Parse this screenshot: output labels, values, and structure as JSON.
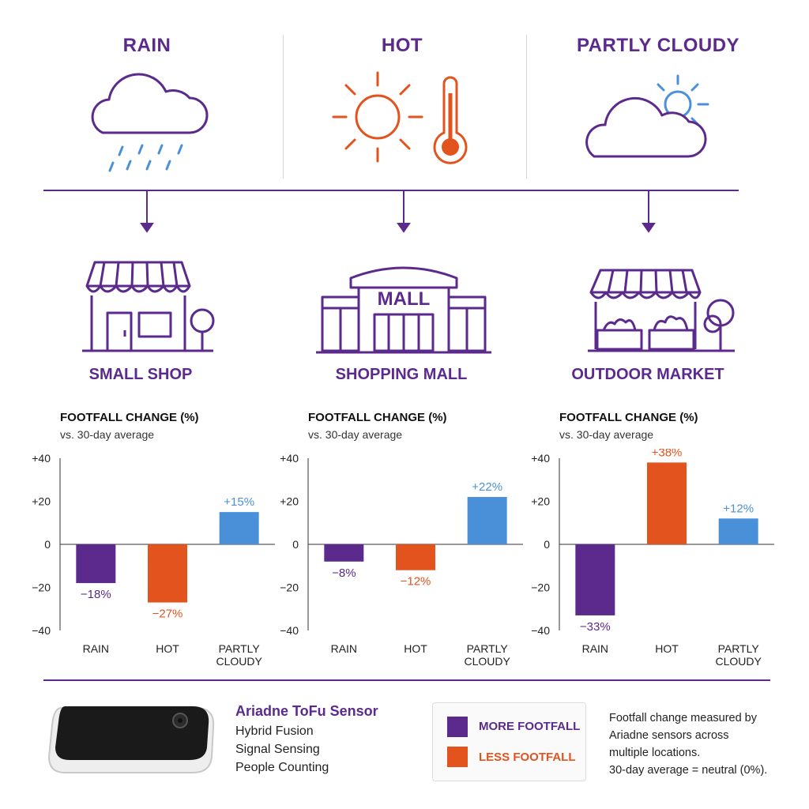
{
  "weather": [
    {
      "label": "RAIN",
      "icon": "rain-cloud-icon"
    },
    {
      "label": "HOT",
      "icon": "sun-thermometer-icon"
    },
    {
      "label": "PARTLY CLOUDY",
      "icon": "partly-cloudy-icon"
    }
  ],
  "stores": [
    {
      "label": "SMALL SHOP",
      "icon": "small-shop-icon"
    },
    {
      "label": "SHOPPING MALL",
      "icon": "shopping-mall-icon",
      "sign": "MALL"
    },
    {
      "label": "OUTDOOR MARKET",
      "icon": "outdoor-market-icon"
    }
  ],
  "chart_title": "FOOTFALL CHANGE (%)",
  "chart_subtitle": "vs. 30-day average",
  "colors": {
    "rain": "#5b2a8c",
    "hot": "#e2531e",
    "cloudy": "#4a90d9",
    "brand": "#5b2a8c"
  },
  "chart_data": [
    {
      "type": "bar",
      "title": "FOOTFALL CHANGE (%)",
      "subtitle": "vs. 30-day average",
      "categories": [
        "RAIN",
        "HOT",
        "PARTLY CLOUDY"
      ],
      "values": [
        -18,
        -27,
        15
      ],
      "data_labels": [
        "−18%",
        "−27%",
        "+15%"
      ],
      "ylim": [
        -40,
        40
      ],
      "yticks": [
        "+40",
        "+20",
        "0",
        "−20",
        "−40"
      ],
      "ytick_values": [
        40,
        20,
        0,
        -20,
        -40
      ]
    },
    {
      "type": "bar",
      "title": "FOOTFALL CHANGE (%)",
      "subtitle": "vs. 30-day average",
      "categories": [
        "RAIN",
        "HOT",
        "PARTLY CLOUDY"
      ],
      "values": [
        -8,
        -12,
        22
      ],
      "data_labels": [
        "−8%",
        "−12%",
        "+22%"
      ],
      "ylim": [
        -40,
        40
      ],
      "yticks": [
        "+40",
        "+20",
        "0",
        "−20",
        "−40"
      ],
      "ytick_values": [
        40,
        20,
        0,
        -20,
        -40
      ]
    },
    {
      "type": "bar",
      "title": "FOOTFALL CHANGE (%)",
      "subtitle": "vs. 30-day average",
      "categories": [
        "RAIN",
        "HOT",
        "PARTLY CLOUDY"
      ],
      "values": [
        -33,
        38,
        12
      ],
      "data_labels": [
        "−33%",
        "+38%",
        "+12%"
      ],
      "ylim": [
        -40,
        40
      ],
      "yticks": [
        "+40",
        "+20",
        "0",
        "−20",
        "−40"
      ],
      "ytick_values": [
        40,
        20,
        0,
        -20,
        -40
      ]
    }
  ],
  "sensor": {
    "name": "Ariadne ToFu Sensor",
    "lines": [
      "Hybrid Fusion",
      "Signal Sensing",
      "People Counting"
    ],
    "icon": "sensor-device-icon"
  },
  "legend": [
    {
      "label": "MORE FOOTFALL",
      "color": "#5b2a8c"
    },
    {
      "label": "LESS FOOTFALL",
      "color": "#e2531e"
    }
  ],
  "note": [
    "Footfall change measured by",
    "Ariadne sensors across",
    "multiple locations.",
    "30-day average = neutral (0%)."
  ]
}
